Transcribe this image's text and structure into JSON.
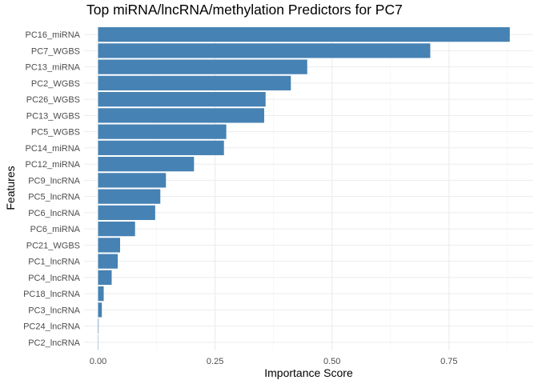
{
  "chart_data": {
    "type": "bar",
    "orientation": "horizontal",
    "title": "Top miRNA/lncRNA/methylation Predictors for PC7",
    "xlabel": "Importance Score",
    "ylabel": "Features",
    "xlim": [
      -0.03,
      0.93
    ],
    "xticks": [
      0.0,
      0.25,
      0.5,
      0.75
    ],
    "xtick_labels": [
      "0.00",
      "0.25",
      "0.50",
      "0.75"
    ],
    "grid": true,
    "bar_color": "#4682B4",
    "categories": [
      "PC16_miRNA",
      "PC7_WGBS",
      "PC13_miRNA",
      "PC2_WGBS",
      "PC26_WGBS",
      "PC13_WGBS",
      "PC5_WGBS",
      "PC14_miRNA",
      "PC12_miRNA",
      "PC9_lncRNA",
      "PC5_lncRNA",
      "PC6_lncRNA",
      "PC6_miRNA",
      "PC21_WGBS",
      "PC1_lncRNA",
      "PC4_lncRNA",
      "PC18_lncRNA",
      "PC3_lncRNA",
      "PC24_lncRNA",
      "PC2_lncRNA"
    ],
    "values": [
      0.88,
      0.71,
      0.447,
      0.412,
      0.358,
      0.355,
      0.274,
      0.269,
      0.205,
      0.145,
      0.133,
      0.122,
      0.079,
      0.047,
      0.042,
      0.029,
      0.012,
      0.008,
      0.001,
      0.0005
    ]
  }
}
